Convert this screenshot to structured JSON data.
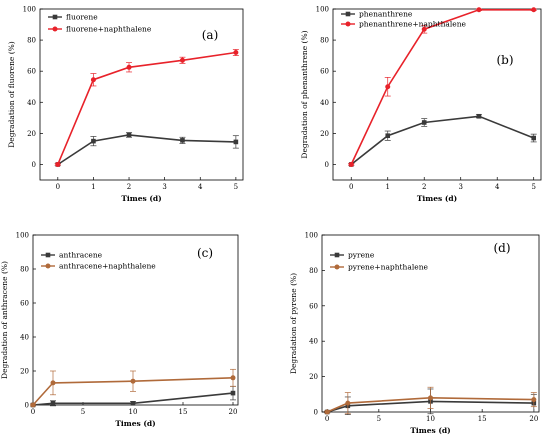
{
  "colors": {
    "series1": "#3a3a3a",
    "series2_ab": "#e8222a",
    "series2_cd": "#b06a3a"
  },
  "chart_data": [
    {
      "type": "line",
      "panel_label": "(a)",
      "xlabel": "Times (d)",
      "ylabel": "Degradation of fluorene (%)",
      "xlim": [
        -0.5,
        5.2
      ],
      "ylim": [
        -10,
        100
      ],
      "xticks": [
        0,
        1,
        2,
        3,
        4,
        5
      ],
      "yticks": [
        0,
        20,
        40,
        60,
        80,
        100
      ],
      "legend_position": "top-left",
      "series": [
        {
          "name": "fluorene",
          "x": [
            0,
            1,
            2,
            3.5,
            5
          ],
          "y": [
            0,
            15,
            19,
            15.5,
            14.5
          ],
          "err": [
            0.5,
            3,
            1.5,
            2,
            4
          ]
        },
        {
          "name": "fluorene+naphthalene",
          "x": [
            0,
            1,
            2,
            3.5,
            5
          ],
          "y": [
            0,
            54.5,
            62.5,
            67,
            72
          ],
          "err": [
            0.5,
            4,
            3,
            2,
            2
          ]
        }
      ]
    },
    {
      "type": "line",
      "panel_label": "(b)",
      "xlabel": "Times (d)",
      "ylabel": "Degradation of phenanthrene (%)",
      "xlim": [
        -0.5,
        5.2
      ],
      "ylim": [
        -10,
        100
      ],
      "xticks": [
        0,
        1,
        2,
        3,
        4,
        5
      ],
      "yticks": [
        0,
        20,
        40,
        60,
        80,
        100
      ],
      "legend_position": "top-left",
      "series": [
        {
          "name": "phenanthrene",
          "x": [
            0,
            1,
            2,
            3.5,
            5
          ],
          "y": [
            0,
            18.5,
            27,
            31,
            17
          ],
          "err": [
            0.5,
            3,
            2.5,
            1,
            2.5
          ]
        },
        {
          "name": "phenanthrene+naphthalene",
          "x": [
            0,
            1,
            2,
            3.5,
            5
          ],
          "y": [
            0,
            50,
            87,
            99.5,
            99.5
          ],
          "err": [
            0.5,
            6,
            2.5,
            0.5,
            0.5
          ]
        }
      ]
    },
    {
      "type": "line",
      "panel_label": "(c)",
      "xlabel": "Times (d)",
      "ylabel": "Degradation of anthracene (%)",
      "xlim": [
        0,
        20.5
      ],
      "ylim": [
        0,
        100
      ],
      "xticks": [
        0,
        5,
        10,
        15,
        20
      ],
      "yticks": [
        0,
        20,
        40,
        60,
        80,
        100
      ],
      "legend_position": "top-left",
      "series": [
        {
          "name": "anthracene",
          "x": [
            0,
            2,
            10,
            20
          ],
          "y": [
            0,
            1,
            1,
            7
          ],
          "err": [
            0.5,
            1.5,
            1,
            4
          ]
        },
        {
          "name": "anthracene+naphthalene",
          "x": [
            0,
            2,
            10,
            20
          ],
          "y": [
            0,
            13,
            14,
            16
          ],
          "err": [
            0.5,
            7,
            6,
            5
          ]
        }
      ]
    },
    {
      "type": "line",
      "panel_label": "(d)",
      "xlabel": "Times (d)",
      "ylabel": "Degradation of pyrene (%)",
      "xlim": [
        -0.5,
        20.5
      ],
      "ylim": [
        0,
        100
      ],
      "xticks": [
        0,
        5,
        10,
        15,
        20
      ],
      "yticks": [
        0,
        20,
        40,
        60,
        80,
        100
      ],
      "legend_position": "top-left",
      "series": [
        {
          "name": "pyrene",
          "x": [
            0,
            2,
            10,
            20
          ],
          "y": [
            0,
            3.5,
            6,
            5
          ],
          "err": [
            0.5,
            5,
            7,
            5
          ]
        },
        {
          "name": "pyrene+naphthalene",
          "x": [
            0,
            2,
            10,
            20
          ],
          "y": [
            0,
            5,
            8,
            7
          ],
          "err": [
            0.5,
            6,
            6,
            4
          ]
        }
      ]
    }
  ]
}
